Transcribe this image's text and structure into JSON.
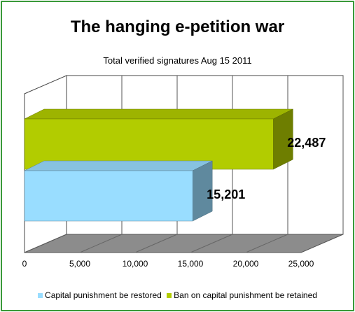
{
  "chart_data": {
    "type": "bar",
    "orientation": "horizontal",
    "three_d": true,
    "title": "The hanging e-petition war",
    "subtitle": "Total verified signatures Aug 15 2011",
    "xlim": [
      0,
      25000
    ],
    "xticks": [
      "0",
      "5,000",
      "10,000",
      "15,000",
      "20,000",
      "25,000"
    ],
    "xtick_values": [
      0,
      5000,
      10000,
      15000,
      20000,
      25000
    ],
    "grid": true,
    "legend_position": "bottom",
    "series": [
      {
        "name": "Capital punishment be restored",
        "value": 15201,
        "label": "15,201",
        "color": "#99ddff"
      },
      {
        "name": "Ban on capital punishment be retained",
        "value": 22487,
        "label": "22,487",
        "color": "#b2cc00"
      }
    ]
  }
}
